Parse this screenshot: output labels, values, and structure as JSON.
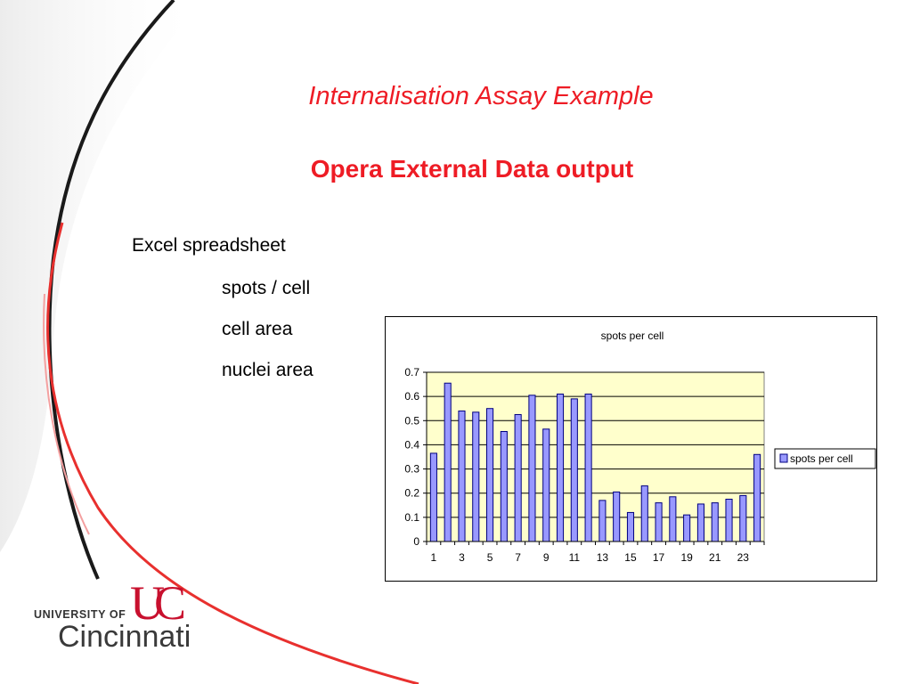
{
  "slide": {
    "title": "Internalisation Assay Example",
    "subtitle": "Opera External Data output",
    "bullets": [
      "Excel spreadsheet",
      "spots / cell",
      "cell area",
      "nuclei area"
    ],
    "logo": {
      "university_of": "UNIVERSITY OF",
      "name": "Cincinnati",
      "mark": "UC",
      "color": "#c8102e"
    }
  },
  "colors": {
    "title": "#ee1c25",
    "bar_fill": "#9999ff",
    "plot_bg": "#ffffcc"
  },
  "chart_data": {
    "type": "bar",
    "title": "spots per cell",
    "xlabel": "",
    "ylabel": "",
    "ylim": [
      0,
      0.7
    ],
    "yticks": [
      "0",
      "0.1",
      "0.2",
      "0.3",
      "0.4",
      "0.5",
      "0.6",
      "0.7"
    ],
    "categories": [
      "1",
      "2",
      "3",
      "4",
      "5",
      "6",
      "7",
      "8",
      "9",
      "10",
      "11",
      "12",
      "13",
      "14",
      "15",
      "16",
      "17",
      "18",
      "19",
      "20",
      "21",
      "22",
      "23",
      "24"
    ],
    "xtick_labels": [
      "1",
      "3",
      "5",
      "7",
      "9",
      "11",
      "13",
      "15",
      "17",
      "19",
      "21",
      "23"
    ],
    "series": [
      {
        "name": "spots per cell",
        "values": [
          0.365,
          0.655,
          0.54,
          0.535,
          0.55,
          0.455,
          0.525,
          0.605,
          0.465,
          0.61,
          0.59,
          0.61,
          0.17,
          0.205,
          0.12,
          0.23,
          0.16,
          0.185,
          0.11,
          0.155,
          0.16,
          0.175,
          0.19,
          0.36
        ]
      }
    ],
    "legend_position": "right",
    "grid": true
  }
}
